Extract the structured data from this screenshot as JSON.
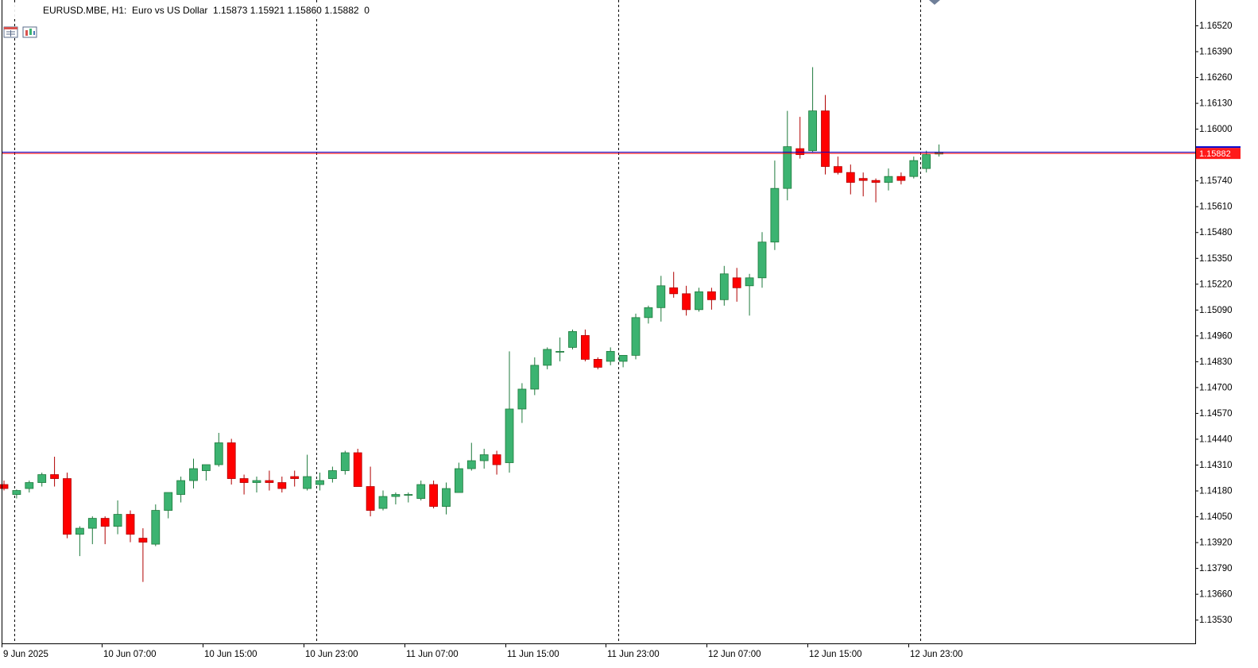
{
  "header": {
    "symbol_line": "EURUSD.MBE, H1:  Euro vs US Dollar  1.15873 1.15921 1.15860 1.15882  0",
    "icons": [
      "depth-of-market-icon",
      "chart-type-icon"
    ]
  },
  "current_price_label": "1.15882",
  "chart_data": {
    "type": "candlestick",
    "symbol": "EURUSD.MBE",
    "timeframe": "H1",
    "description": "Euro vs US Dollar",
    "ohlc": {
      "open": "1.15873",
      "high": "1.15921",
      "low": "1.15860",
      "close": "1.15882",
      "volume_field": "0"
    },
    "ylim": [
      1.1344,
      1.1666
    ],
    "y_ticks": [
      "1.16520",
      "1.16390",
      "1.16260",
      "1.16130",
      "1.16000",
      "1.15870",
      "1.15740",
      "1.15610",
      "1.15480",
      "1.15350",
      "1.15220",
      "1.15090",
      "1.14960",
      "1.14830",
      "1.14700",
      "1.14570",
      "1.14440",
      "1.14310",
      "1.14180",
      "1.14050",
      "1.13920",
      "1.13790",
      "1.13660",
      "1.13530"
    ],
    "x_labels": [
      "9 Jun 2025",
      "10 Jun 07:00",
      "10 Jun 15:00",
      "10 Jun 23:00",
      "11 Jun 07:00",
      "11 Jun 15:00",
      "11 Jun 23:00",
      "12 Jun 07:00",
      "12 Jun 15:00",
      "12 Jun 23:00"
    ],
    "bid_line": 1.15882,
    "ask_line": 1.15872,
    "period_separators": [
      "9 Jun 2025",
      "10 Jun",
      "11 Jun",
      "12 Jun"
    ],
    "colors": {
      "bull": "#3cb371",
      "bear": "#ff0000",
      "bull_border": "#1e7a3c",
      "bear_border": "#b00000",
      "bid_line": "#ff0000",
      "ask_line": "#0000cd",
      "price_tag": "#ff1a1a"
    },
    "candles": [
      [
        1.1421,
        1.1423,
        1.1418,
        1.1419
      ],
      [
        1.1416,
        1.14185,
        1.1414,
        1.1418
      ],
      [
        1.1419,
        1.1423,
        1.1417,
        1.1422
      ],
      [
        1.1422,
        1.1427,
        1.142,
        1.1426
      ],
      [
        1.1426,
        1.1435,
        1.142,
        1.1424
      ],
      [
        1.1424,
        1.1427,
        1.1394,
        1.1396
      ],
      [
        1.1396,
        1.14,
        1.1385,
        1.1399
      ],
      [
        1.1399,
        1.1405,
        1.1391,
        1.1404
      ],
      [
        1.1404,
        1.1405,
        1.1391,
        1.14
      ],
      [
        1.14,
        1.1413,
        1.1396,
        1.1406
      ],
      [
        1.1406,
        1.1408,
        1.1392,
        1.1396
      ],
      [
        1.1394,
        1.1399,
        1.1372,
        1.1392
      ],
      [
        1.1391,
        1.1411,
        1.139,
        1.1408
      ],
      [
        1.1408,
        1.1417,
        1.1404,
        1.1417
      ],
      [
        1.1416,
        1.1425,
        1.1412,
        1.1423
      ],
      [
        1.1423,
        1.1434,
        1.1419,
        1.1429
      ],
      [
        1.1428,
        1.1431,
        1.1423,
        1.1431
      ],
      [
        1.1431,
        1.1447,
        1.143,
        1.1442
      ],
      [
        1.1442,
        1.1444,
        1.1421,
        1.1424
      ],
      [
        1.1424,
        1.1426,
        1.1416,
        1.1422
      ],
      [
        1.1422,
        1.1425,
        1.1417,
        1.1423
      ],
      [
        1.1423,
        1.1428,
        1.1418,
        1.1422
      ],
      [
        1.1422,
        1.1425,
        1.1417,
        1.1419
      ],
      [
        1.1425,
        1.1428,
        1.142,
        1.1424
      ],
      [
        1.1419,
        1.1436,
        1.1418,
        1.1425
      ],
      [
        1.1421,
        1.1427,
        1.1418,
        1.1423
      ],
      [
        1.1424,
        1.143,
        1.1422,
        1.1428
      ],
      [
        1.1428,
        1.1438,
        1.1426,
        1.1437
      ],
      [
        1.1437,
        1.1439,
        1.142,
        1.142
      ],
      [
        1.142,
        1.143,
        1.1405,
        1.1408
      ],
      [
        1.1409,
        1.1418,
        1.1408,
        1.1415
      ],
      [
        1.1415,
        1.1417,
        1.1411,
        1.1416
      ],
      [
        1.1416,
        1.1417,
        1.1412,
        1.1416
      ],
      [
        1.1414,
        1.1423,
        1.1413,
        1.1421
      ],
      [
        1.1421,
        1.1423,
        1.1409,
        1.141
      ],
      [
        1.141,
        1.1422,
        1.1406,
        1.1419
      ],
      [
        1.1417,
        1.1432,
        1.1417,
        1.1429
      ],
      [
        1.1429,
        1.1442,
        1.1428,
        1.1433
      ],
      [
        1.1433,
        1.1439,
        1.1429,
        1.1436
      ],
      [
        1.1436,
        1.1438,
        1.1426,
        1.1431
      ],
      [
        1.1432,
        1.1488,
        1.1427,
        1.1459
      ],
      [
        1.1459,
        1.1472,
        1.1452,
        1.1469
      ],
      [
        1.1469,
        1.1485,
        1.1466,
        1.1481
      ],
      [
        1.1481,
        1.149,
        1.1479,
        1.1489
      ],
      [
        1.1488,
        1.1495,
        1.1483,
        1.1488
      ],
      [
        1.149,
        1.1499,
        1.1489,
        1.1498
      ],
      [
        1.1496,
        1.1499,
        1.1483,
        1.1484
      ],
      [
        1.1484,
        1.1485,
        1.1479,
        1.148
      ],
      [
        1.1483,
        1.149,
        1.1481,
        1.1488
      ],
      [
        1.1483,
        1.1486,
        1.148,
        1.1486
      ],
      [
        1.1486,
        1.1507,
        1.1484,
        1.1505
      ],
      [
        1.1505,
        1.1511,
        1.1502,
        1.151
      ],
      [
        1.151,
        1.1526,
        1.1503,
        1.1521
      ],
      [
        1.152,
        1.1528,
        1.1515,
        1.1517
      ],
      [
        1.1517,
        1.1521,
        1.1506,
        1.1509
      ],
      [
        1.1509,
        1.152,
        1.1508,
        1.1518
      ],
      [
        1.1518,
        1.152,
        1.1509,
        1.1514
      ],
      [
        1.1514,
        1.1531,
        1.1511,
        1.1527
      ],
      [
        1.1525,
        1.153,
        1.1513,
        1.152
      ],
      [
        1.1521,
        1.1527,
        1.1506,
        1.1525
      ],
      [
        1.1525,
        1.1548,
        1.152,
        1.1543
      ],
      [
        1.1543,
        1.1584,
        1.1539,
        1.157
      ],
      [
        1.157,
        1.1609,
        1.1564,
        1.1591
      ],
      [
        1.159,
        1.1606,
        1.1585,
        1.1587
      ],
      [
        1.1589,
        1.1631,
        1.1588,
        1.1609
      ],
      [
        1.1609,
        1.1617,
        1.1577,
        1.1581
      ],
      [
        1.1581,
        1.1586,
        1.1577,
        1.1578
      ],
      [
        1.1578,
        1.1582,
        1.1567,
        1.1573
      ],
      [
        1.1575,
        1.1578,
        1.1566,
        1.1574
      ],
      [
        1.1574,
        1.1575,
        1.1563,
        1.1573
      ],
      [
        1.1573,
        1.158,
        1.1569,
        1.1576
      ],
      [
        1.1576,
        1.1578,
        1.1572,
        1.1574
      ],
      [
        1.1576,
        1.1586,
        1.1575,
        1.1584
      ],
      [
        1.158,
        1.1589,
        1.1578,
        1.1587
      ],
      [
        1.15873,
        1.15921,
        1.1586,
        1.15882
      ]
    ]
  }
}
